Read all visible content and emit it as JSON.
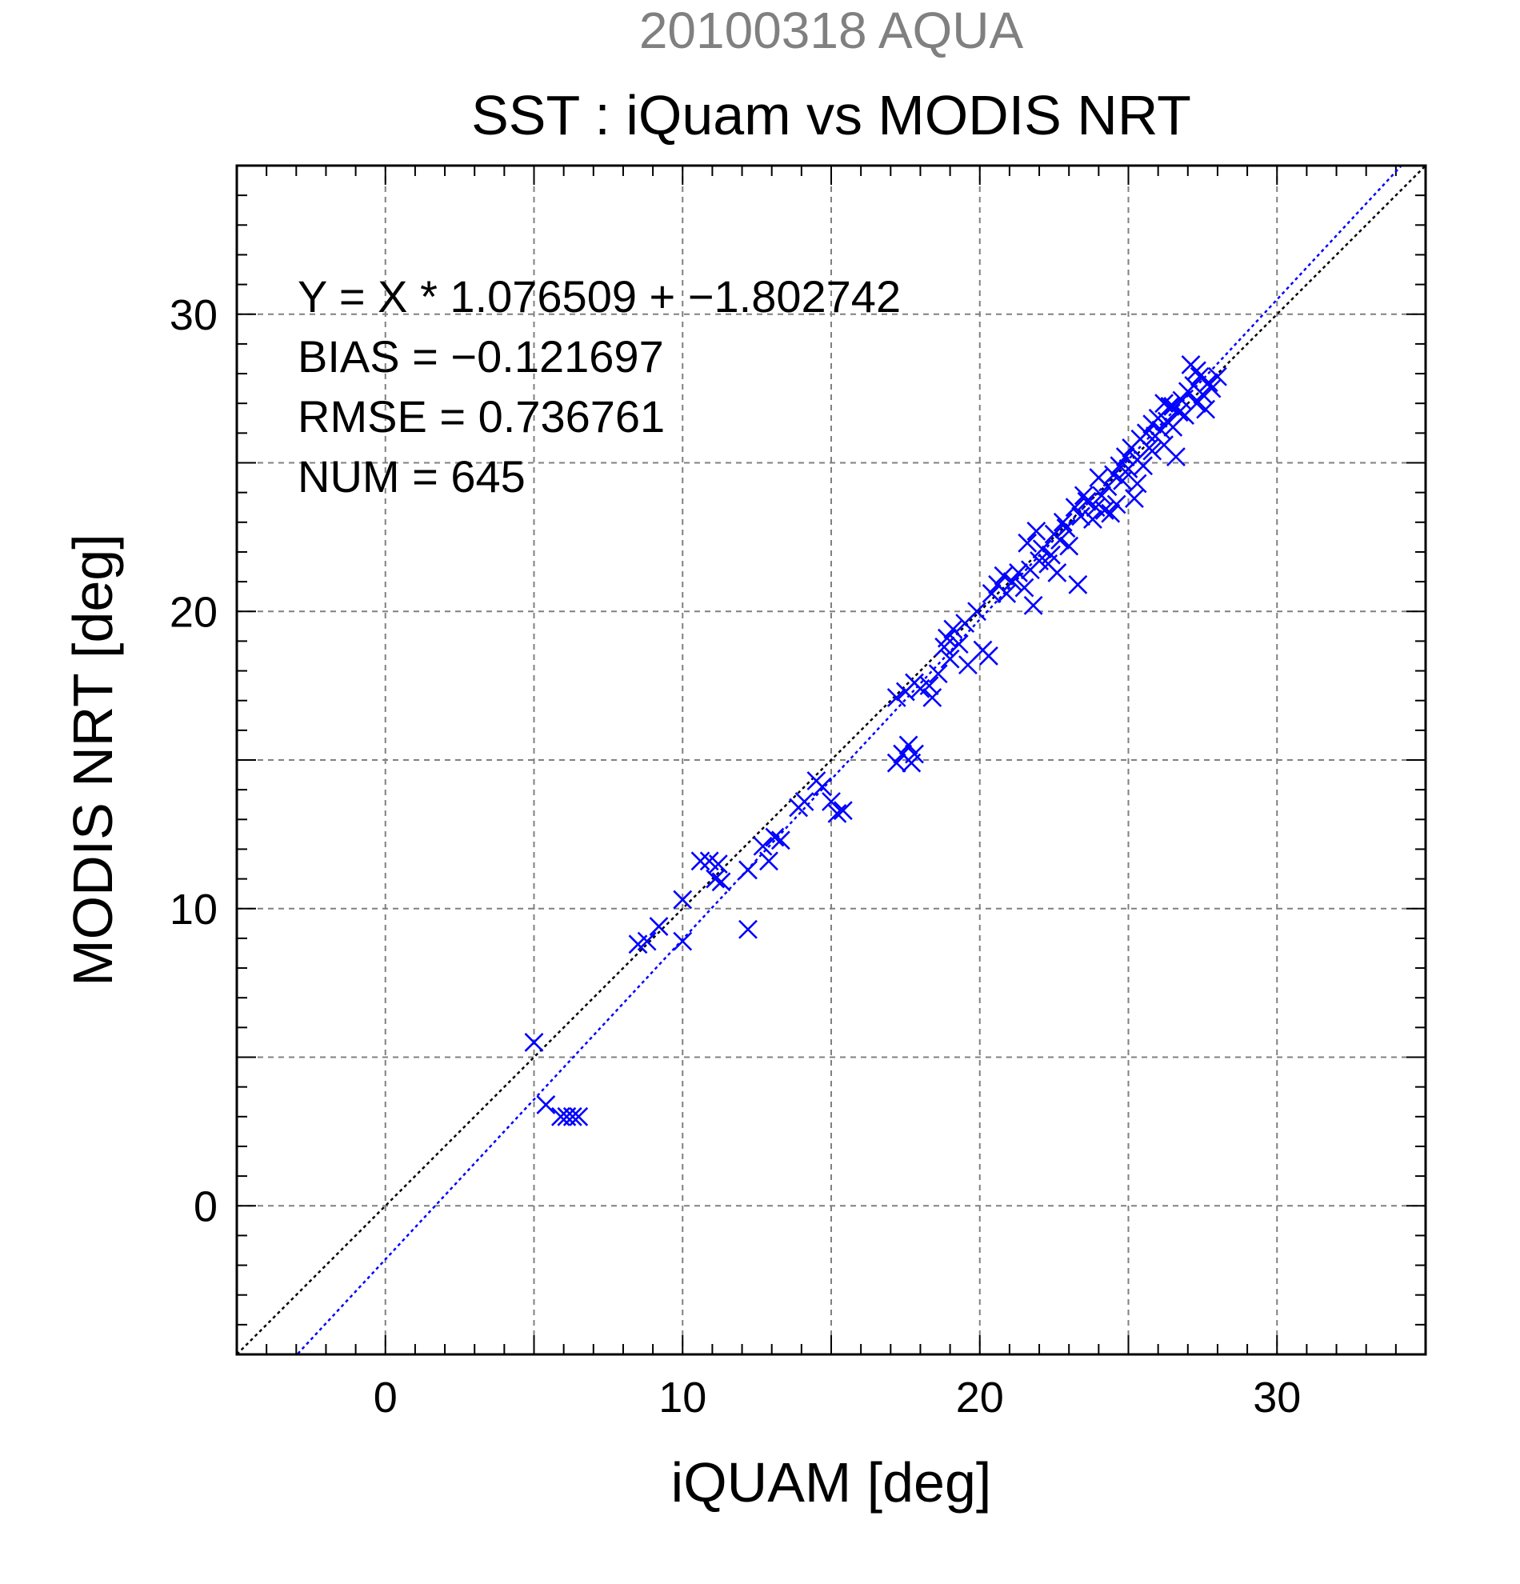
{
  "chart_data": {
    "type": "scatter",
    "header": "20100318 AQUA",
    "title": "SST : iQuam vs MODIS NRT",
    "xlabel": "iQUAM [deg]",
    "ylabel": "MODIS NRT [deg]",
    "xlim": [
      -5,
      35
    ],
    "ylim": [
      -5,
      35
    ],
    "xticks": [
      0,
      10,
      20,
      30
    ],
    "yticks": [
      0,
      10,
      20,
      30
    ],
    "minor_step": 1,
    "grid_step": 5,
    "grid": true,
    "marker": "x",
    "colors": {
      "points": "#0000ff",
      "fit_line": "#0000ff",
      "identity_line": "#000000",
      "header": "#808080",
      "grid": "#808080"
    },
    "stats": {
      "equation": "Y = X * 1.076509 + −1.802742",
      "bias": "BIAS = −0.121697",
      "rmse": "RMSE = 0.736761",
      "num": "NUM = 645"
    },
    "fit": {
      "slope": 1.076509,
      "intercept": -1.802742
    },
    "points": [
      [
        5.0,
        5.5
      ],
      [
        5.4,
        3.4
      ],
      [
        5.9,
        3.0
      ],
      [
        6.1,
        3.0
      ],
      [
        6.3,
        3.0
      ],
      [
        6.5,
        3.0
      ],
      [
        8.5,
        8.8
      ],
      [
        8.8,
        8.9
      ],
      [
        9.2,
        9.4
      ],
      [
        10.0,
        8.9
      ],
      [
        10.0,
        10.3
      ],
      [
        10.6,
        11.6
      ],
      [
        10.9,
        11.6
      ],
      [
        11.1,
        11.0
      ],
      [
        11.2,
        11.5
      ],
      [
        11.3,
        10.9
      ],
      [
        12.2,
        9.3
      ],
      [
        12.2,
        11.3
      ],
      [
        12.7,
        12.1
      ],
      [
        12.9,
        11.6
      ],
      [
        13.1,
        12.4
      ],
      [
        13.3,
        12.3
      ],
      [
        13.9,
        13.4
      ],
      [
        14.1,
        13.6
      ],
      [
        14.5,
        14.3
      ],
      [
        14.7,
        14.1
      ],
      [
        15.0,
        13.6
      ],
      [
        15.2,
        13.2
      ],
      [
        15.4,
        13.3
      ],
      [
        17.2,
        14.9
      ],
      [
        17.4,
        15.2
      ],
      [
        17.6,
        15.5
      ],
      [
        17.8,
        15.2
      ],
      [
        17.7,
        14.9
      ],
      [
        17.2,
        17.1
      ],
      [
        17.5,
        17.3
      ],
      [
        17.8,
        17.6
      ],
      [
        18.0,
        17.4
      ],
      [
        18.3,
        17.5
      ],
      [
        18.4,
        17.1
      ],
      [
        18.8,
        18.8
      ],
      [
        18.9,
        19.1
      ],
      [
        19.1,
        19.4
      ],
      [
        19.3,
        18.9
      ],
      [
        19.5,
        19.6
      ],
      [
        19.6,
        18.2
      ],
      [
        19.9,
        20.0
      ],
      [
        20.1,
        18.7
      ],
      [
        20.3,
        18.5
      ],
      [
        20.4,
        20.6
      ],
      [
        20.6,
        20.9
      ],
      [
        20.9,
        20.6
      ],
      [
        21.1,
        21.0
      ],
      [
        21.3,
        21.3
      ],
      [
        21.5,
        20.8
      ],
      [
        21.7,
        21.4
      ],
      [
        21.8,
        20.2
      ],
      [
        22.0,
        21.7
      ],
      [
        22.1,
        22.1
      ],
      [
        22.3,
        21.6
      ],
      [
        22.5,
        22.6
      ],
      [
        22.6,
        21.3
      ],
      [
        22.7,
        22.4
      ],
      [
        22.9,
        22.8
      ],
      [
        23.0,
        22.2
      ],
      [
        23.2,
        23.5
      ],
      [
        23.3,
        20.9
      ],
      [
        23.4,
        23.2
      ],
      [
        23.6,
        23.7
      ],
      [
        23.9,
        23.5
      ],
      [
        24.1,
        23.9
      ],
      [
        24.2,
        23.4
      ],
      [
        24.3,
        24.2
      ],
      [
        24.5,
        24.6
      ],
      [
        24.6,
        23.6
      ],
      [
        24.7,
        24.9
      ],
      [
        24.8,
        24.4
      ],
      [
        24.9,
        25.2
      ],
      [
        25.0,
        24.8
      ],
      [
        25.1,
        25.5
      ],
      [
        25.2,
        23.8
      ],
      [
        25.3,
        25.1
      ],
      [
        25.4,
        25.8
      ],
      [
        25.5,
        24.9
      ],
      [
        25.6,
        26.0
      ],
      [
        25.7,
        25.5
      ],
      [
        25.8,
        26.3
      ],
      [
        25.9,
        25.9
      ],
      [
        26.0,
        26.5
      ],
      [
        26.1,
        26.1
      ],
      [
        26.2,
        25.6
      ],
      [
        26.3,
        26.4
      ],
      [
        26.4,
        26.9
      ],
      [
        26.5,
        26.2
      ],
      [
        26.6,
        25.2
      ],
      [
        26.7,
        26.7
      ],
      [
        26.8,
        27.1
      ],
      [
        26.9,
        26.6
      ],
      [
        27.0,
        27.4
      ],
      [
        27.1,
        28.3
      ],
      [
        27.2,
        27.6
      ],
      [
        27.3,
        27.0
      ],
      [
        27.4,
        27.9
      ],
      [
        27.5,
        27.3
      ],
      [
        27.6,
        26.8
      ],
      [
        27.7,
        27.7
      ],
      [
        27.8,
        27.5
      ],
      [
        28.0,
        27.9
      ],
      [
        21.6,
        22.3
      ],
      [
        22.4,
        21.9
      ],
      [
        23.8,
        23.1
      ],
      [
        24.4,
        23.3
      ],
      [
        19.0,
        18.4
      ],
      [
        18.6,
        17.9
      ],
      [
        20.8,
        21.2
      ],
      [
        22.8,
        23.0
      ],
      [
        24.0,
        24.5
      ],
      [
        25.3,
        24.3
      ],
      [
        26.2,
        27.0
      ],
      [
        27.3,
        28.1
      ],
      [
        26.5,
        26.9
      ],
      [
        25.8,
        25.4
      ],
      [
        23.5,
        23.9
      ],
      [
        21.9,
        22.7
      ]
    ]
  }
}
